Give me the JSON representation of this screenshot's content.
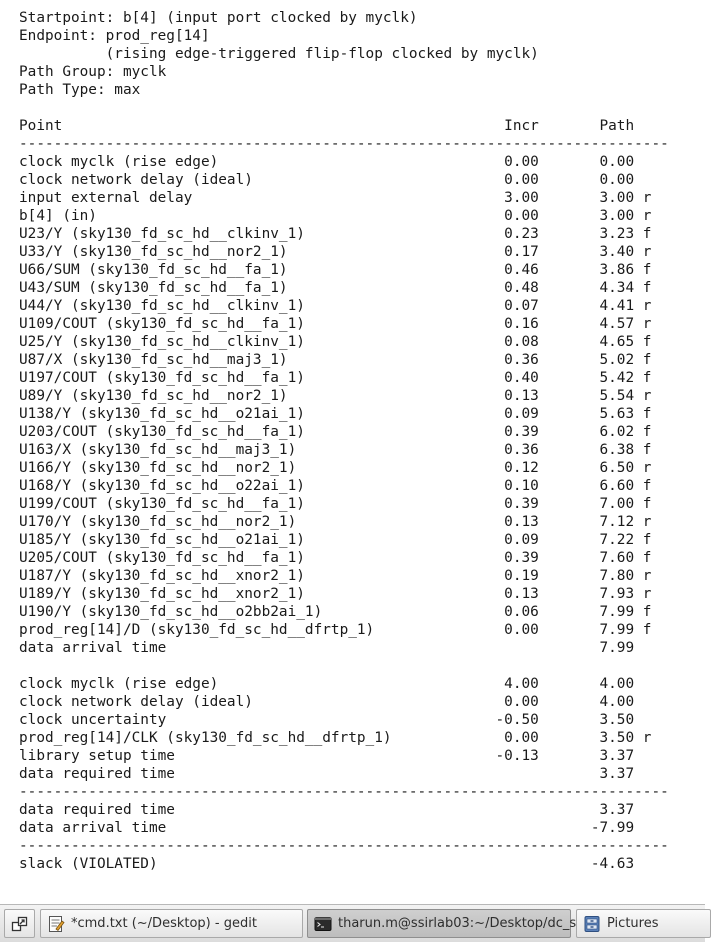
{
  "report": {
    "lines": [
      "Startpoint: b[4] (input port clocked by myclk)",
      "Endpoint: prod_reg[14]",
      "          (rising edge-triggered flip-flop clocked by myclk)",
      "Path Group: myclk",
      "Path Type: max",
      "",
      "Point                                                   Incr       Path",
      "---------------------------------------------------------------------------",
      "clock myclk (rise edge)                                 0.00       0.00",
      "clock network delay (ideal)                             0.00       0.00",
      "input external delay                                    3.00       3.00 r",
      "b[4] (in)                                               0.00       3.00 r",
      "U23/Y (sky130_fd_sc_hd__clkinv_1)                       0.23       3.23 f",
      "U33/Y (sky130_fd_sc_hd__nor2_1)                         0.17       3.40 r",
      "U66/SUM (sky130_fd_sc_hd__fa_1)                         0.46       3.86 f",
      "U43/SUM (sky130_fd_sc_hd__fa_1)                         0.48       4.34 f",
      "U44/Y (sky130_fd_sc_hd__clkinv_1)                       0.07       4.41 r",
      "U109/COUT (sky130_fd_sc_hd__fa_1)                       0.16       4.57 r",
      "U25/Y (sky130_fd_sc_hd__clkinv_1)                       0.08       4.65 f",
      "U87/X (sky130_fd_sc_hd__maj3_1)                         0.36       5.02 f",
      "U197/COUT (sky130_fd_sc_hd__fa_1)                       0.40       5.42 f",
      "U89/Y (sky130_fd_sc_hd__nor2_1)                         0.13       5.54 r",
      "U138/Y (sky130_fd_sc_hd__o21ai_1)                       0.09       5.63 f",
      "U203/COUT (sky130_fd_sc_hd__fa_1)                       0.39       6.02 f",
      "U163/X (sky130_fd_sc_hd__maj3_1)                        0.36       6.38 f",
      "U166/Y (sky130_fd_sc_hd__nor2_1)                        0.12       6.50 r",
      "U168/Y (sky130_fd_sc_hd__o22ai_1)                       0.10       6.60 f",
      "U199/COUT (sky130_fd_sc_hd__fa_1)                       0.39       7.00 f",
      "U170/Y (sky130_fd_sc_hd__nor2_1)                        0.13       7.12 r",
      "U185/Y (sky130_fd_sc_hd__o21ai_1)                       0.09       7.22 f",
      "U205/COUT (sky130_fd_sc_hd__fa_1)                       0.39       7.60 f",
      "U187/Y (sky130_fd_sc_hd__xnor2_1)                       0.19       7.80 r",
      "U189/Y (sky130_fd_sc_hd__xnor2_1)                       0.13       7.93 r",
      "U190/Y (sky130_fd_sc_hd__o2bb2ai_1)                     0.06       7.99 f",
      "prod_reg[14]/D (sky130_fd_sc_hd__dfrtp_1)               0.00       7.99 f",
      "data arrival time                                                  7.99",
      "",
      "clock myclk (rise edge)                                 4.00       4.00",
      "clock network delay (ideal)                             0.00       4.00",
      "clock uncertainty                                      -0.50       3.50",
      "prod_reg[14]/CLK (sky130_fd_sc_hd__dfrtp_1)             0.00       3.50 r",
      "library setup time                                     -0.13       3.37",
      "data required time                                                 3.37",
      "---------------------------------------------------------------------------",
      "data required time                                                 3.37",
      "data arrival time                                                 -7.99",
      "---------------------------------------------------------------------------",
      "slack (VIOLATED)                                                  -4.63"
    ]
  },
  "taskbar": {
    "show_desktop_icon": "show-desktop-icon",
    "items": [
      {
        "label": "*cmd.txt (~/Desktop) - gedit",
        "icon": "text-editor-icon"
      },
      {
        "label": "tharun.m@ssirlab03:~/Desktop/dc_s...",
        "icon": "terminal-icon"
      },
      {
        "label": "Pictures",
        "icon": "file-manager-icon"
      }
    ]
  }
}
